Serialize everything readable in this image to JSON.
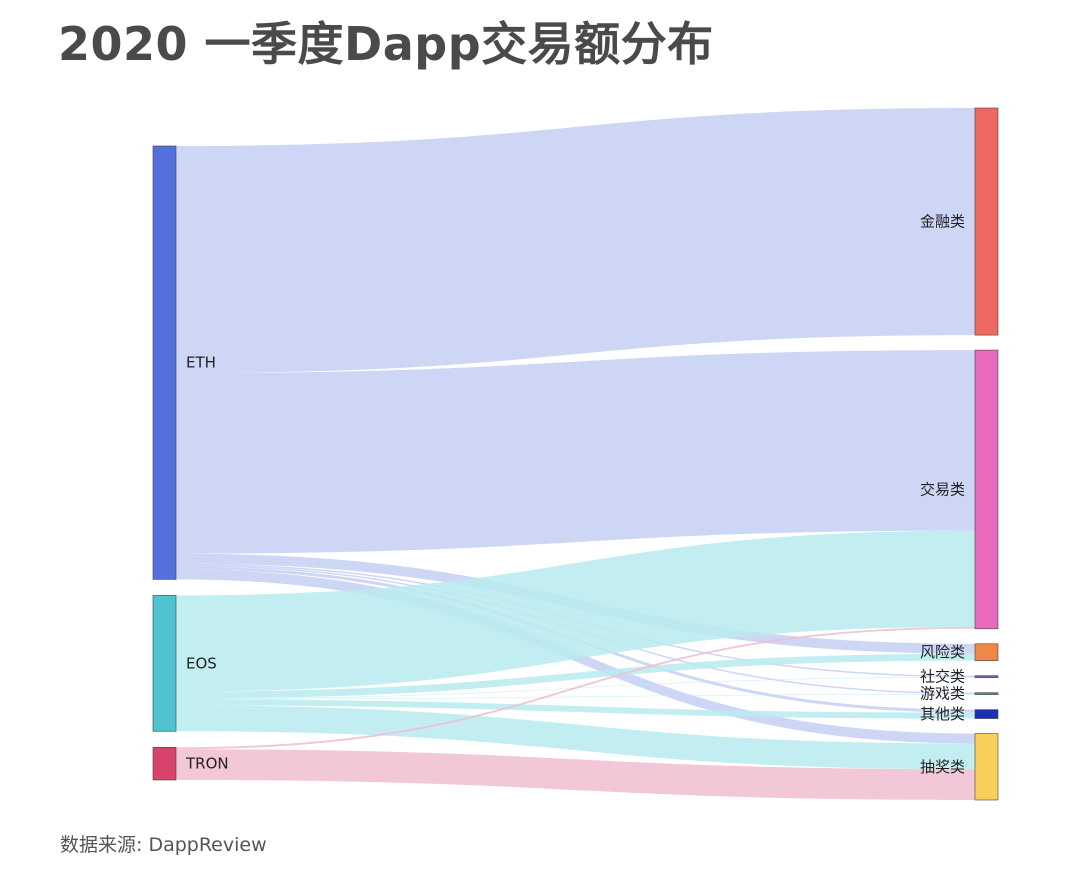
{
  "header": {
    "title": "2020 一季度Dapp交易额分布"
  },
  "footer": {
    "source": "数据来源: DappReview"
  },
  "chart_data": {
    "type": "sankey",
    "title": "2020 一季度Dapp交易额分布",
    "source_nodes": [
      {
        "name": "ETH",
        "color": "#5470dc"
      },
      {
        "name": "EOS",
        "color": "#4fc3cf"
      },
      {
        "name": "TRON",
        "color": "#d9436b"
      }
    ],
    "target_nodes": [
      {
        "name": "金融类",
        "color": "#ee6760"
      },
      {
        "name": "交易类",
        "color": "#e96bbd"
      },
      {
        "name": "风险类",
        "color": "#f0874a"
      },
      {
        "name": "社交类",
        "color": "#7b5ea7"
      },
      {
        "name": "游戏类",
        "color": "#3a9e8f"
      },
      {
        "name": "其他类",
        "color": "#1e2eb0"
      },
      {
        "name": "抽奖类",
        "color": "#f7cf5a"
      }
    ],
    "links": [
      {
        "source": "ETH",
        "target": "金融类",
        "value": 229
      },
      {
        "source": "ETH",
        "target": "交易类",
        "value": 182
      },
      {
        "source": "ETH",
        "target": "风险类",
        "value": 10
      },
      {
        "source": "ETH",
        "target": "社交类",
        "value": 1.5
      },
      {
        "source": "ETH",
        "target": "游戏类",
        "value": 1.5
      },
      {
        "source": "ETH",
        "target": "其他类",
        "value": 3
      },
      {
        "source": "ETH",
        "target": "抽奖类",
        "value": 10
      },
      {
        "source": "EOS",
        "target": "交易类",
        "value": 97
      },
      {
        "source": "EOS",
        "target": "风险类",
        "value": 7
      },
      {
        "source": "EOS",
        "target": "社交类",
        "value": 0.5
      },
      {
        "source": "EOS",
        "target": "游戏类",
        "value": 0.5
      },
      {
        "source": "EOS",
        "target": "其他类",
        "value": 6
      },
      {
        "source": "EOS",
        "target": "抽奖类",
        "value": 26
      },
      {
        "source": "TRON",
        "target": "交易类",
        "value": 2
      },
      {
        "source": "TRON",
        "target": "抽奖类",
        "value": 31
      }
    ],
    "colors": {
      "link_ETH": "#c5cff4",
      "link_EOS": "#b9ebef",
      "link_TRON": "#f0bdd0"
    }
  }
}
